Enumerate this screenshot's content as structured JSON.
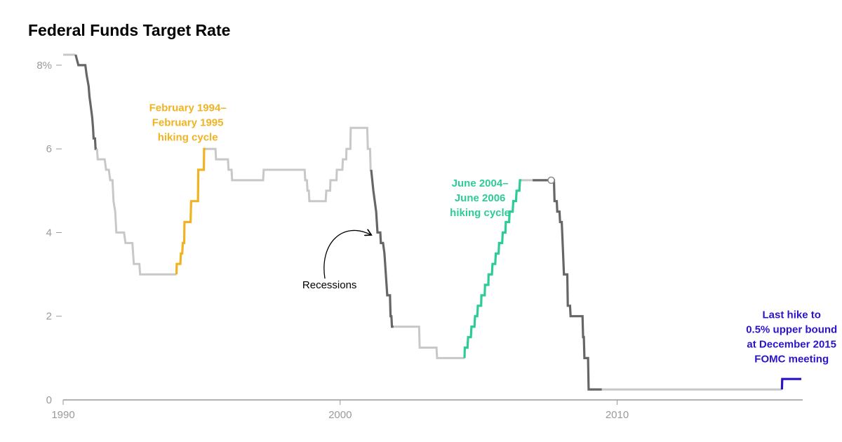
{
  "chart_data": {
    "type": "line",
    "title": "Federal Funds Target Rate",
    "xlabel": "",
    "ylabel": "",
    "xlim": [
      1990,
      2016.7
    ],
    "ylim": [
      0,
      8.3
    ],
    "y_ticks": [
      {
        "value": 0,
        "label": "0"
      },
      {
        "value": 2,
        "label": "2"
      },
      {
        "value": 4,
        "label": "4"
      },
      {
        "value": 6,
        "label": "6"
      },
      {
        "value": 8,
        "label": "8%"
      }
    ],
    "x_ticks": [
      {
        "value": 1990,
        "label": "1990"
      },
      {
        "value": 2000,
        "label": "2000"
      },
      {
        "value": 2010,
        "label": "2010"
      }
    ],
    "colors": {
      "base": "#c8c8c8",
      "recession": "#666666",
      "hike_1994": "#f0b323",
      "hike_2004": "#2dcc96",
      "last_hike": "#2b14c8",
      "axis": "#999999",
      "annotation": "#000000"
    },
    "series": [
      {
        "style": "base",
        "points": [
          [
            1990.0,
            8.25
          ],
          [
            1990.45,
            8.25
          ]
        ]
      },
      {
        "style": "recession",
        "points": [
          [
            1990.45,
            8.25
          ],
          [
            1990.55,
            8.0
          ],
          [
            1990.8,
            8.0
          ],
          [
            1990.85,
            7.75
          ],
          [
            1990.92,
            7.5
          ],
          [
            1990.95,
            7.25
          ],
          [
            1991.0,
            7.0
          ],
          [
            1991.05,
            6.75
          ],
          [
            1991.08,
            6.5
          ],
          [
            1991.1,
            6.25
          ],
          [
            1991.15,
            6.25
          ],
          [
            1991.17,
            6.0
          ],
          [
            1991.22,
            6.0
          ]
        ]
      },
      {
        "style": "base",
        "points": [
          [
            1991.22,
            6.0
          ],
          [
            1991.25,
            5.75
          ],
          [
            1991.5,
            5.75
          ],
          [
            1991.55,
            5.5
          ],
          [
            1991.65,
            5.5
          ],
          [
            1991.7,
            5.25
          ],
          [
            1991.78,
            5.25
          ],
          [
            1991.82,
            4.75
          ],
          [
            1991.88,
            4.5
          ],
          [
            1991.92,
            4.0
          ],
          [
            1992.2,
            4.0
          ],
          [
            1992.25,
            3.75
          ],
          [
            1992.5,
            3.75
          ],
          [
            1992.55,
            3.25
          ],
          [
            1992.75,
            3.25
          ],
          [
            1992.78,
            3.0
          ],
          [
            1994.09,
            3.0
          ]
        ]
      },
      {
        "style": "hike_1994",
        "points": [
          [
            1994.09,
            3.0
          ],
          [
            1994.1,
            3.25
          ],
          [
            1994.23,
            3.25
          ],
          [
            1994.25,
            3.5
          ],
          [
            1994.3,
            3.5
          ],
          [
            1994.32,
            3.75
          ],
          [
            1994.37,
            3.75
          ],
          [
            1994.38,
            4.25
          ],
          [
            1994.6,
            4.25
          ],
          [
            1994.62,
            4.75
          ],
          [
            1994.87,
            4.75
          ],
          [
            1994.88,
            5.5
          ],
          [
            1995.08,
            5.5
          ],
          [
            1995.09,
            6.0
          ],
          [
            1995.15,
            6.0
          ]
        ]
      },
      {
        "style": "base",
        "points": [
          [
            1995.15,
            6.0
          ],
          [
            1995.5,
            6.0
          ],
          [
            1995.52,
            5.75
          ],
          [
            1995.95,
            5.75
          ],
          [
            1995.97,
            5.5
          ],
          [
            1996.08,
            5.5
          ],
          [
            1996.1,
            5.25
          ],
          [
            1997.22,
            5.25
          ],
          [
            1997.24,
            5.5
          ],
          [
            1998.72,
            5.5
          ],
          [
            1998.74,
            5.25
          ],
          [
            1998.8,
            5.25
          ],
          [
            1998.82,
            5.0
          ],
          [
            1998.87,
            5.0
          ],
          [
            1998.89,
            4.75
          ],
          [
            1999.48,
            4.75
          ],
          [
            1999.5,
            5.0
          ],
          [
            1999.64,
            5.0
          ],
          [
            1999.65,
            5.25
          ],
          [
            1999.87,
            5.25
          ],
          [
            1999.88,
            5.5
          ],
          [
            2000.08,
            5.5
          ],
          [
            2000.1,
            5.75
          ],
          [
            2000.22,
            5.75
          ],
          [
            2000.23,
            6.0
          ],
          [
            2000.37,
            6.0
          ],
          [
            2000.38,
            6.5
          ],
          [
            2000.98,
            6.5
          ],
          [
            2001.0,
            6.0
          ],
          [
            2001.08,
            6.0
          ],
          [
            2001.1,
            5.5
          ],
          [
            2001.12,
            5.5
          ]
        ]
      },
      {
        "style": "recession",
        "points": [
          [
            2001.12,
            5.5
          ],
          [
            2001.2,
            5.0
          ],
          [
            2001.3,
            4.5
          ],
          [
            2001.35,
            4.0
          ],
          [
            2001.45,
            4.0
          ],
          [
            2001.47,
            3.75
          ],
          [
            2001.55,
            3.75
          ],
          [
            2001.6,
            3.5
          ],
          [
            2001.65,
            3.0
          ],
          [
            2001.7,
            2.5
          ],
          [
            2001.8,
            2.5
          ],
          [
            2001.82,
            2.0
          ],
          [
            2001.85,
            2.0
          ],
          [
            2001.87,
            1.75
          ],
          [
            2001.93,
            1.75
          ]
        ]
      },
      {
        "style": "base",
        "points": [
          [
            2001.93,
            1.75
          ],
          [
            2002.85,
            1.75
          ],
          [
            2002.87,
            1.25
          ],
          [
            2003.48,
            1.25
          ],
          [
            2003.5,
            1.0
          ],
          [
            2004.49,
            1.0
          ]
        ]
      },
      {
        "style": "hike_2004",
        "points": [
          [
            2004.49,
            1.0
          ],
          [
            2004.5,
            1.25
          ],
          [
            2004.6,
            1.25
          ],
          [
            2004.62,
            1.5
          ],
          [
            2004.72,
            1.5
          ],
          [
            2004.74,
            1.75
          ],
          [
            2004.85,
            1.75
          ],
          [
            2004.87,
            2.0
          ],
          [
            2004.95,
            2.0
          ],
          [
            2004.97,
            2.25
          ],
          [
            2005.09,
            2.25
          ],
          [
            2005.1,
            2.5
          ],
          [
            2005.22,
            2.5
          ],
          [
            2005.23,
            2.75
          ],
          [
            2005.35,
            2.75
          ],
          [
            2005.36,
            3.0
          ],
          [
            2005.48,
            3.0
          ],
          [
            2005.5,
            3.25
          ],
          [
            2005.6,
            3.25
          ],
          [
            2005.62,
            3.5
          ],
          [
            2005.72,
            3.5
          ],
          [
            2005.74,
            3.75
          ],
          [
            2005.85,
            3.75
          ],
          [
            2005.87,
            4.0
          ],
          [
            2005.97,
            4.0
          ],
          [
            2005.98,
            4.25
          ],
          [
            2006.1,
            4.25
          ],
          [
            2006.12,
            4.5
          ],
          [
            2006.23,
            4.5
          ],
          [
            2006.25,
            4.75
          ],
          [
            2006.35,
            4.75
          ],
          [
            2006.37,
            5.0
          ],
          [
            2006.47,
            5.0
          ],
          [
            2006.49,
            5.25
          ],
          [
            2006.55,
            5.25
          ]
        ]
      },
      {
        "style": "base",
        "points": [
          [
            2006.55,
            5.25
          ],
          [
            2006.95,
            5.25
          ]
        ]
      },
      {
        "style": "recession",
        "points": [
          [
            2006.95,
            5.25
          ],
          [
            2007.72,
            5.25
          ],
          [
            2007.74,
            4.75
          ],
          [
            2007.82,
            4.75
          ],
          [
            2007.84,
            4.5
          ],
          [
            2007.92,
            4.5
          ],
          [
            2007.94,
            4.25
          ],
          [
            2008.0,
            4.25
          ],
          [
            2008.05,
            3.5
          ],
          [
            2008.08,
            3.0
          ],
          [
            2008.2,
            3.0
          ],
          [
            2008.22,
            2.25
          ],
          [
            2008.3,
            2.25
          ],
          [
            2008.32,
            2.0
          ],
          [
            2008.75,
            2.0
          ],
          [
            2008.77,
            1.5
          ],
          [
            2008.8,
            1.5
          ],
          [
            2008.82,
            1.0
          ],
          [
            2008.95,
            1.0
          ],
          [
            2008.97,
            0.25
          ],
          [
            2009.45,
            0.25
          ]
        ]
      },
      {
        "style": "base",
        "points": [
          [
            2009.45,
            0.25
          ],
          [
            2015.95,
            0.25
          ]
        ]
      },
      {
        "style": "last_hike",
        "points": [
          [
            2015.95,
            0.25
          ],
          [
            2015.96,
            0.5
          ],
          [
            2016.65,
            0.5
          ]
        ]
      }
    ],
    "marker": {
      "x": 2007.62,
      "y": 5.25
    },
    "annotations": [
      {
        "lines": [
          "February 1994–",
          "February 1995",
          "hiking cycle"
        ],
        "color": "hike_1994",
        "x": 1994.5,
        "y": 6.9,
        "align": "middle"
      },
      {
        "lines": [
          "June 2004–",
          "June 2006",
          "hiking cycle"
        ],
        "color": "hike_2004",
        "x": 2005.05,
        "y": 5.1,
        "align": "middle"
      },
      {
        "lines": [
          "Recessions"
        ],
        "color": "annotation",
        "x": 2000.6,
        "y": 2.67,
        "align": "end"
      },
      {
        "lines": [
          "Last hike to",
          "0.5% upper bound",
          "at December 2015",
          "FOMC meeting"
        ],
        "color": "last_hike",
        "x": 2016.3,
        "y": 1.95,
        "align": "middle"
      }
    ]
  }
}
